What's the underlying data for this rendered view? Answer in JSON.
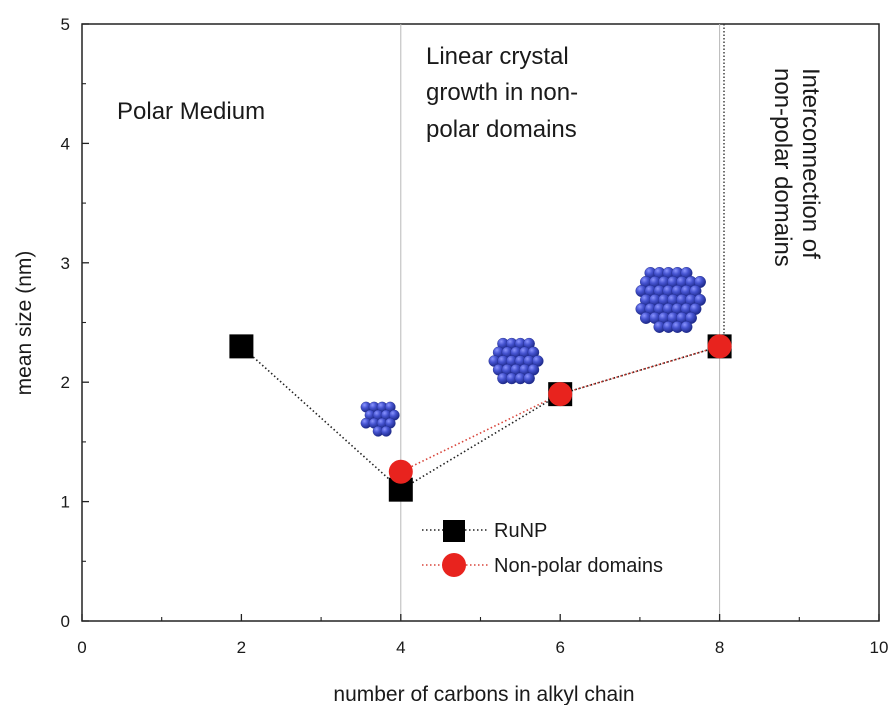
{
  "chart_data": {
    "type": "scatter",
    "title": "",
    "xlabel": "number of carbons in alkyl chain",
    "ylabel": "mean size (nm)",
    "xlim": [
      0,
      10
    ],
    "ylim": [
      0,
      5
    ],
    "xticks": [
      0,
      2,
      4,
      6,
      8,
      10
    ],
    "yticks": [
      0,
      1,
      2,
      3,
      4,
      5
    ],
    "grid": false,
    "legend_position": "bottom-center",
    "series": [
      {
        "name": "RuNP",
        "marker": "square",
        "color": "#000000",
        "line_color": "#222222",
        "line_style": "dotted",
        "x": [
          2,
          4,
          6,
          8
        ],
        "y": [
          2.3,
          1.1,
          1.9,
          2.3
        ]
      },
      {
        "name": "Non-polar domains",
        "marker": "circle",
        "color": "#e8231e",
        "line_color": "#d8453b",
        "line_style": "dotted",
        "x": [
          4,
          6,
          8
        ],
        "y": [
          1.25,
          1.9,
          2.3
        ]
      }
    ],
    "vertical_lines": [
      4,
      8
    ],
    "regions": [
      {
        "lines": [
          "Polar Medium"
        ]
      },
      {
        "lines": [
          "Linear crystal",
          "growth in non-",
          "polar domains"
        ]
      },
      {
        "lines": [
          "Interconnection of",
          "non-polar domains"
        ]
      }
    ],
    "nanoparticle_colors": [
      "#2f3bb0",
      "#4553d0",
      "#1e2a8a"
    ]
  }
}
